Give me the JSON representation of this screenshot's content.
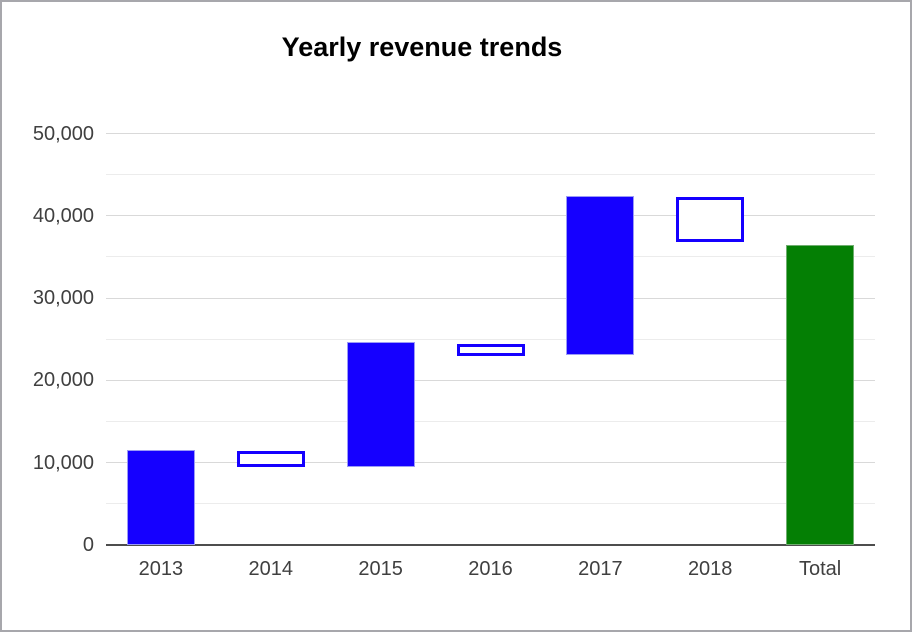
{
  "chart_data": {
    "type": "bar",
    "variant": "waterfall",
    "title": "Yearly revenue trends",
    "categories": [
      "2013",
      "2014",
      "2015",
      "2016",
      "2017",
      "2018",
      "Total"
    ],
    "bars": [
      {
        "category": "2013",
        "start": 0,
        "end": 11500,
        "kind": "increase"
      },
      {
        "category": "2014",
        "start": 11450,
        "end": 9450,
        "kind": "decrease"
      },
      {
        "category": "2015",
        "start": 9450,
        "end": 24600,
        "kind": "increase"
      },
      {
        "category": "2016",
        "start": 24400,
        "end": 22950,
        "kind": "decrease"
      },
      {
        "category": "2017",
        "start": 23050,
        "end": 42400,
        "kind": "increase"
      },
      {
        "category": "2018",
        "start": 42300,
        "end": 36850,
        "kind": "decrease"
      },
      {
        "category": "Total",
        "start": 0,
        "end": 36400,
        "kind": "total"
      }
    ],
    "xlabel": "",
    "ylabel": "",
    "ylim": [
      0,
      50000
    ],
    "yticks": [
      {
        "value": 0,
        "label": "0"
      },
      {
        "value": 10000,
        "label": "10,000"
      },
      {
        "value": 20000,
        "label": "20,000"
      },
      {
        "value": 30000,
        "label": "30,000"
      },
      {
        "value": 40000,
        "label": "40,000"
      },
      {
        "value": 50000,
        "label": "50,000"
      }
    ],
    "minor_yticks": [
      5000,
      15000,
      25000,
      35000,
      45000
    ],
    "grid": "on",
    "legend": "none",
    "colors": {
      "increase": "#1500ff",
      "decrease_border": "#1500ff",
      "decrease_fill": "#ffffff",
      "total": "#047f04",
      "gridline": "#d9d9d9",
      "minor_gridline": "#ececec",
      "baseline": "#4d4d4d",
      "axis_text": "#404040",
      "title_text": "#000000",
      "frame_border": "#a7a7ac"
    }
  }
}
